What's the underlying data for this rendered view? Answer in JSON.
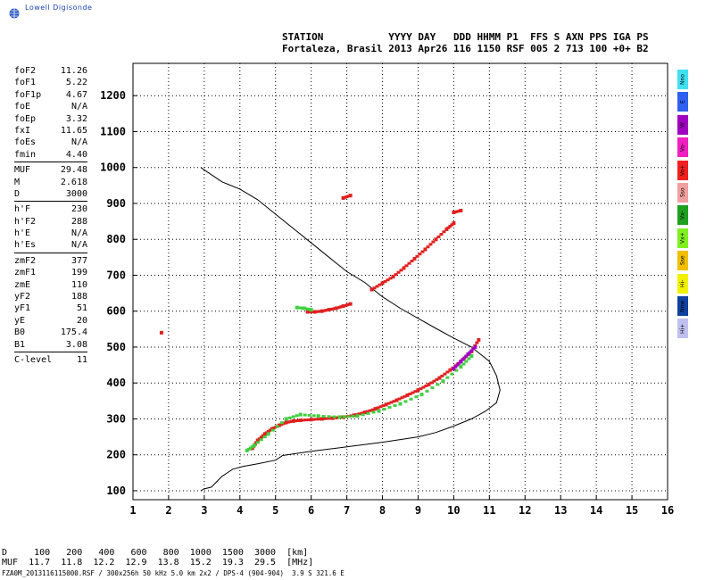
{
  "logo": {
    "text": "Lowell Digisonde"
  },
  "header": {
    "line1": "STATION           YYYY DAY   DDD HHMM P1  FFS S AXN PPS IGA PS",
    "line2": "Fortaleza, Brasil 2013 Apr26 116 1150 RSF 005 2 713 100 +0+ B2"
  },
  "params": {
    "group1": [
      {
        "name": "foF2",
        "value": "11.26"
      },
      {
        "name": "foF1",
        "value": "5.22"
      },
      {
        "name": "foF1p",
        "value": "4.67"
      },
      {
        "name": "foE",
        "value": "N/A"
      },
      {
        "name": "foEp",
        "value": "3.32"
      },
      {
        "name": "fxI",
        "value": "11.65"
      },
      {
        "name": "foEs",
        "value": "N/A"
      },
      {
        "name": "fmin",
        "value": "4.40"
      }
    ],
    "group2": [
      {
        "name": "MUF",
        "value": "29.48"
      },
      {
        "name": "M",
        "value": "2.618"
      },
      {
        "name": "D",
        "value": "3000"
      }
    ],
    "group3": [
      {
        "name": "h'F",
        "value": "230"
      },
      {
        "name": "h'F2",
        "value": "288"
      },
      {
        "name": "h'E",
        "value": "N/A"
      },
      {
        "name": "h'Es",
        "value": "N/A"
      }
    ],
    "group4": [
      {
        "name": "zmF2",
        "value": "377"
      },
      {
        "name": "zmF1",
        "value": "199"
      },
      {
        "name": "zmE",
        "value": "110"
      },
      {
        "name": "yF2",
        "value": "188"
      },
      {
        "name": "yF1",
        "value": "51"
      },
      {
        "name": "yE",
        "value": "20"
      },
      {
        "name": "B0",
        "value": "175.4"
      },
      {
        "name": "B1",
        "value": "3.08"
      }
    ],
    "group5": [
      {
        "name": "C-level",
        "value": "11"
      }
    ]
  },
  "legend": [
    {
      "label": "Nno",
      "color": "#40e0f0"
    },
    {
      "label": "E",
      "color": "#3060f0"
    },
    {
      "label": "W",
      "color": "#a000c0"
    },
    {
      "label": "Vo-",
      "color": "#f020c0"
    },
    {
      "label": "Vo+",
      "color": "#f02020"
    },
    {
      "label": "Sso",
      "color": "#f0a0a0"
    },
    {
      "label": "Vx-",
      "color": "#20a020"
    },
    {
      "label": "Vx+",
      "color": "#80f020"
    },
    {
      "label": "Sse",
      "color": "#f0c000"
    },
    {
      "label": "Hi-",
      "color": "#f0f000"
    },
    {
      "label": "Nnw",
      "color": "#1040a0"
    },
    {
      "label": "Hi+",
      "color": "#c0c0f0"
    }
  ],
  "dmuf": {
    "line1": "D     100   200   400   600   800  1000  1500  3000  [km]",
    "line2": "MUF  11.7  11.8  12.2  12.9  13.8  15.2  19.3  29.5  [MHz]"
  },
  "footer": "FZA0M_2013116115000.RSF / 300x256h 50 kHz 5.0 km 2x2 / DPS-4 (904-904)  3.9 S 321.6 E",
  "chart_data": {
    "type": "scatter",
    "title": "",
    "xlabel": "",
    "ylabel": "",
    "xlim": [
      1,
      16
    ],
    "ylim": [
      75,
      1290
    ],
    "x_ticks": [
      "1",
      "2",
      "3",
      "4",
      "5",
      "6",
      "7",
      "8",
      "9",
      "10",
      "11",
      "12",
      "13",
      "14",
      "15",
      "16"
    ],
    "y_ticks": [
      "100",
      "200",
      "300",
      "400",
      "500",
      "600",
      "700",
      "800",
      "900",
      "1000",
      "1100",
      "1200"
    ],
    "grid": true,
    "profile": {
      "name": "",
      "x": [
        2.9,
        3.0,
        3.2,
        3.3,
        3.5,
        3.8,
        4.1,
        4.5,
        5.0,
        5.2,
        6.0,
        7.0,
        8.0,
        9.0,
        9.5,
        10.0,
        10.5,
        10.9,
        11.2,
        11.3,
        11.2,
        11.0,
        10.5,
        10.0,
        9.5,
        9.0,
        8.5,
        8.0,
        7.5,
        7.0,
        6.5,
        6.0,
        5.5,
        5.0,
        4.5,
        4.0,
        3.5,
        3.2,
        2.9
      ],
      "y": [
        100,
        105,
        110,
        120,
        140,
        160,
        168,
        175,
        185,
        198,
        210,
        222,
        235,
        250,
        262,
        280,
        300,
        322,
        345,
        380,
        420,
        460,
        500,
        525,
        552,
        580,
        608,
        640,
        680,
        710,
        750,
        790,
        830,
        870,
        910,
        940,
        960,
        980,
        1000
      ]
    },
    "series": [
      {
        "color": "#e02020",
        "x": [
          4.35,
          4.5,
          4.7,
          4.9,
          5.1,
          5.3,
          5.5,
          5.7,
          6.0,
          6.3,
          6.6,
          6.9,
          7.2,
          7.5,
          7.8,
          8.1,
          8.4,
          8.7,
          9.0,
          9.3,
          9.6,
          9.9,
          10.2,
          10.5,
          10.7
        ],
        "y": [
          218,
          240,
          258,
          272,
          282,
          290,
          294,
          296,
          298,
          300,
          302,
          305,
          310,
          318,
          328,
          340,
          352,
          366,
          380,
          396,
          414,
          436,
          460,
          488,
          520
        ]
      },
      {
        "color": "#40d040",
        "x": [
          4.2,
          4.4,
          4.8,
          5.3,
          5.7,
          6.2,
          6.8,
          7.3,
          7.9,
          8.5,
          9.1,
          9.7,
          10.2,
          10.5
        ],
        "y": [
          212,
          226,
          258,
          300,
          312,
          308,
          305,
          308,
          322,
          342,
          368,
          405,
          445,
          475
        ]
      },
      {
        "color": "#e02020",
        "x": [
          5.9,
          6.1,
          6.3,
          6.5,
          6.7,
          6.9,
          7.1
        ],
        "y": [
          598,
          598,
          600,
          604,
          608,
          614,
          620
        ]
      },
      {
        "color": "#40d040",
        "x": [
          5.6,
          5.8,
          6.0
        ],
        "y": [
          610,
          608,
          604
        ]
      },
      {
        "color": "#e02020",
        "x": [
          7.7,
          8.0,
          8.3,
          8.6,
          8.9,
          9.2,
          9.5,
          9.8,
          10.0
        ],
        "y": [
          660,
          678,
          696,
          720,
          746,
          772,
          800,
          828,
          845
        ]
      },
      {
        "color": "#e02020",
        "x": [
          6.9,
          7.1,
          10.0,
          10.2,
          1.8
        ],
        "y": [
          915,
          922,
          875,
          880,
          540
        ]
      },
      {
        "color": "#a000c0",
        "x": [
          10.0,
          10.2,
          10.4,
          10.6
        ],
        "y": [
          440,
          460,
          480,
          500
        ]
      }
    ]
  }
}
